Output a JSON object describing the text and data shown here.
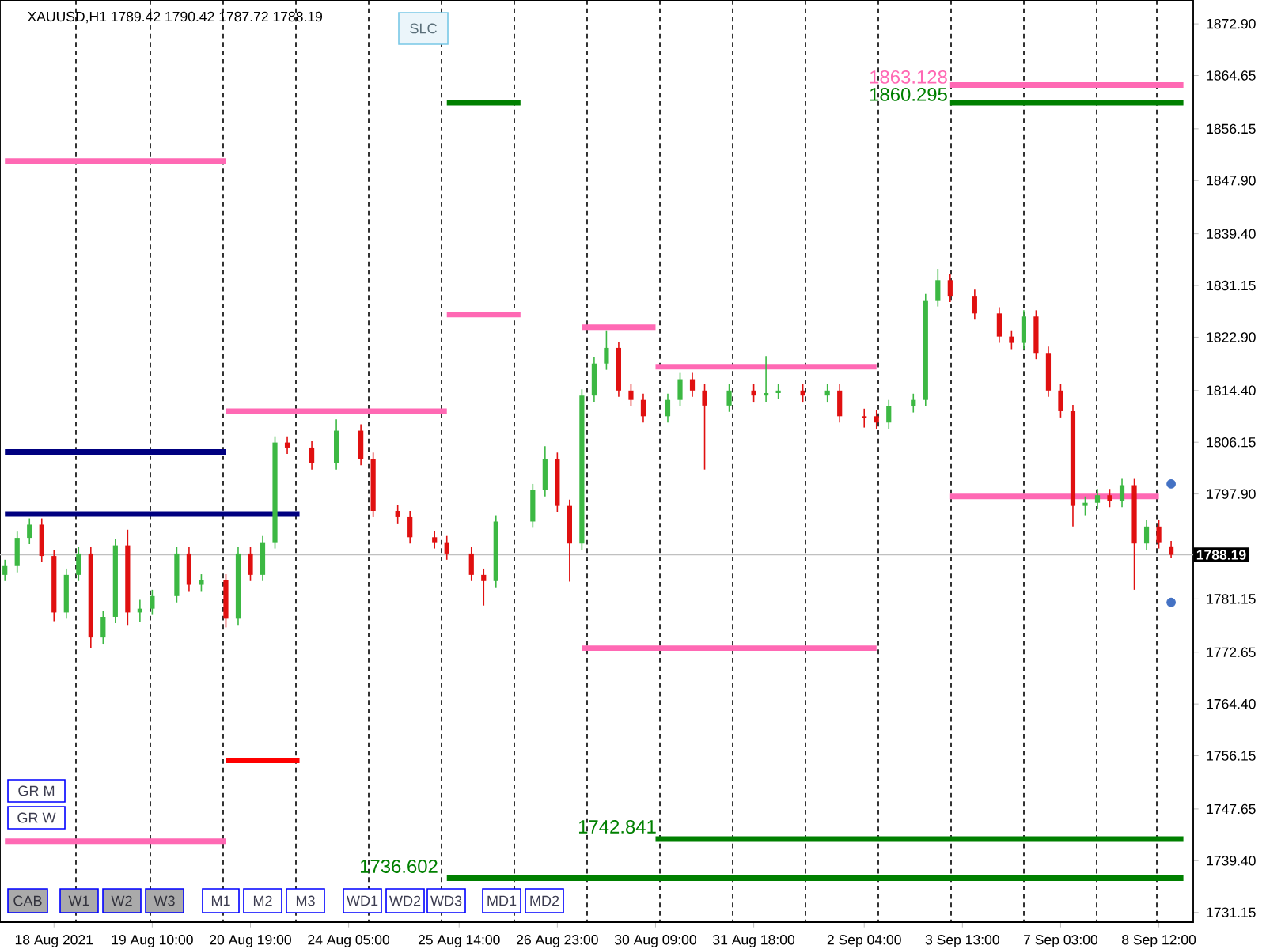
{
  "chart_data": {
    "type": "candlestick",
    "title": "XAUUSD,H1  1789.42 1790.42 1787.72 1788.19",
    "categories": [
      null,
      null,
      null,
      null,
      "18 Aug 2021",
      null,
      null,
      null,
      null,
      null,
      null,
      null,
      "19 Aug 10:00",
      null,
      null,
      null,
      null,
      null,
      null,
      null,
      "20 Aug 19:00",
      null,
      null,
      null,
      null,
      null,
      null,
      null,
      "24 Aug 05:00",
      null,
      null,
      null,
      null,
      null,
      null,
      null,
      null,
      "25 Aug 14:00",
      null,
      null,
      null,
      null,
      null,
      null,
      null,
      "26 Aug 23:00",
      null,
      null,
      null,
      null,
      null,
      null,
      null,
      "30 Aug 09:00",
      null,
      null,
      null,
      null,
      null,
      null,
      null,
      "31 Aug 18:00",
      null,
      null,
      null,
      null,
      null,
      null,
      null,
      null,
      "2 Sep 04:00",
      null,
      null,
      null,
      null,
      null,
      null,
      null,
      "3 Sep 13:00",
      null,
      null,
      null,
      null,
      null,
      null,
      null,
      "7 Sep 03:00",
      null,
      null,
      null,
      null,
      null,
      null,
      null,
      "8 Sep 12:00",
      null,
      null
    ],
    "ohlc": [
      [
        1785.0,
        1787.4,
        1784.0,
        1786.4
      ],
      [
        1786.4,
        1791.9,
        1785.4,
        1790.9
      ],
      [
        1790.9,
        1794.0,
        1789.9,
        1793.0
      ],
      [
        1793.0,
        1794.0,
        1787.0,
        1788.0
      ],
      [
        1788.0,
        1789.0,
        1777.6,
        1779.0
      ],
      [
        1779.0,
        1786.0,
        1778.0,
        1785.0
      ],
      [
        1785.0,
        1789.4,
        1784.0,
        1788.4
      ],
      [
        1788.4,
        1789.4,
        1773.3,
        1775.0
      ],
      [
        1775.0,
        1779.3,
        1774.0,
        1778.3
      ],
      [
        1778.3,
        1790.7,
        1777.3,
        1789.7
      ],
      [
        1789.7,
        1792.2,
        1777.0,
        1779.0
      ],
      [
        1779.0,
        1781.0,
        1777.5,
        1779.6
      ],
      [
        1779.6,
        1782.6,
        1778.6,
        1781.6
      ],
      null,
      [
        1781.6,
        1789.4,
        1780.6,
        1788.4
      ],
      [
        1788.4,
        1789.4,
        1782.4,
        1783.4
      ],
      [
        1783.4,
        1785.1,
        1782.4,
        1784.1
      ],
      null,
      [
        1784.1,
        1785.1,
        1776.6,
        1778.0
      ],
      [
        1778.0,
        1789.4,
        1777.0,
        1788.4
      ],
      [
        1788.4,
        1789.4,
        1784.0,
        1785.0
      ],
      [
        1785.0,
        1791.2,
        1784.0,
        1790.2
      ],
      [
        1790.2,
        1807.1,
        1789.2,
        1806.1
      ],
      [
        1806.1,
        1807.1,
        1804.3,
        1805.3
      ],
      null,
      [
        1805.3,
        1806.3,
        1801.8,
        1802.8
      ],
      null,
      [
        1802.8,
        1809.8,
        1801.8,
        1808.0
      ],
      null,
      [
        1808.0,
        1809.0,
        1802.5,
        1803.5
      ],
      [
        1803.5,
        1804.5,
        1794.2,
        1795.2
      ],
      null,
      [
        1795.2,
        1796.2,
        1793.2,
        1794.2
      ],
      [
        1794.2,
        1795.2,
        1790.0,
        1791.0
      ],
      null,
      [
        1791.0,
        1792.0,
        1789.2,
        1790.2
      ],
      [
        1790.2,
        1791.2,
        1787.4,
        1788.4
      ],
      null,
      [
        1788.4,
        1789.4,
        1784.0,
        1785.0
      ],
      [
        1785.0,
        1786.0,
        1780.1,
        1784.0
      ],
      [
        1784.0,
        1794.5,
        1783.0,
        1793.5
      ],
      null,
      null,
      [
        1793.5,
        1799.5,
        1792.5,
        1798.5
      ],
      [
        1798.5,
        1805.5,
        1797.5,
        1803.5
      ],
      [
        1803.5,
        1804.5,
        1795.0,
        1796.0
      ],
      [
        1796.0,
        1797.0,
        1783.9,
        1790.0
      ],
      [
        1790.0,
        1814.6,
        1789.0,
        1813.6
      ],
      [
        1813.6,
        1819.7,
        1812.6,
        1818.7
      ],
      [
        1818.7,
        1824.0,
        1817.7,
        1821.2
      ],
      [
        1821.2,
        1822.2,
        1813.4,
        1814.4
      ],
      [
        1814.4,
        1815.4,
        1811.9,
        1812.9
      ],
      [
        1812.9,
        1813.9,
        1809.3,
        1810.3
      ],
      null,
      [
        1810.3,
        1813.9,
        1809.3,
        1812.9
      ],
      [
        1812.9,
        1817.2,
        1811.9,
        1816.2
      ],
      [
        1816.2,
        1817.2,
        1813.4,
        1814.4
      ],
      [
        1814.4,
        1815.4,
        1801.8,
        1812.0
      ],
      null,
      [
        1812.0,
        1815.4,
        1811.0,
        1814.4
      ],
      null,
      [
        1814.4,
        1815.4,
        1812.6,
        1813.6
      ],
      [
        1813.6,
        1819.9,
        1812.6,
        1814.0
      ],
      [
        1814.0,
        1815.4,
        1813.0,
        1814.4
      ],
      null,
      [
        1814.4,
        1815.4,
        1812.6,
        1813.6
      ],
      null,
      [
        1813.6,
        1815.4,
        1812.6,
        1814.4
      ],
      [
        1814.4,
        1815.4,
        1809.3,
        1810.3
      ],
      null,
      [
        1810.3,
        1811.5,
        1808.5,
        1810.0
      ],
      [
        1810.3,
        1811.3,
        1808.3,
        1809.3
      ],
      [
        1809.3,
        1812.9,
        1808.3,
        1811.9
      ],
      null,
      [
        1811.9,
        1813.9,
        1810.9,
        1812.9
      ],
      [
        1812.9,
        1829.8,
        1811.9,
        1828.8
      ],
      [
        1828.8,
        1833.8,
        1827.8,
        1832.0
      ],
      [
        1832.0,
        1833.0,
        1828.5,
        1829.5
      ],
      null,
      [
        1829.5,
        1830.5,
        1825.7,
        1826.7
      ],
      null,
      [
        1826.7,
        1827.7,
        1822.0,
        1823.0
      ],
      [
        1823.0,
        1824.0,
        1821.0,
        1822.0
      ],
      [
        1822.0,
        1827.2,
        1821.0,
        1826.2
      ],
      [
        1826.2,
        1827.2,
        1819.4,
        1820.4
      ],
      [
        1820.4,
        1821.4,
        1813.4,
        1814.4
      ],
      [
        1814.4,
        1815.4,
        1810.1,
        1811.1
      ],
      [
        1811.1,
        1812.1,
        1792.7,
        1796.0
      ],
      [
        1796.0,
        1797.5,
        1794.5,
        1796.5
      ],
      [
        1796.5,
        1798.7,
        1795.5,
        1797.7
      ],
      [
        1797.7,
        1798.7,
        1795.8,
        1796.8
      ],
      [
        1796.8,
        1800.3,
        1795.8,
        1799.3
      ],
      [
        1799.3,
        1800.3,
        1782.6,
        1790.0
      ],
      [
        1790.0,
        1793.7,
        1789.0,
        1792.7
      ],
      [
        1792.7,
        1793.7,
        1789.2,
        1790.2
      ],
      [
        1789.42,
        1790.42,
        1787.72,
        1788.19
      ],
      null
    ],
    "colors": [
      "#3cb843",
      "#3cb843",
      "#3cb843",
      "#e01010",
      "#e01010",
      "#3cb843",
      "#3cb843",
      "#e01010",
      "#3cb843",
      "#3cb843",
      "#e01010",
      "#3cb843",
      "#3cb843",
      null,
      "#3cb843",
      "#e01010",
      "#3cb843",
      null,
      "#e01010",
      "#3cb843",
      "#e01010",
      "#3cb843",
      "#3cb843",
      "#e01010",
      null,
      "#e01010",
      null,
      "#3cb843",
      null,
      "#e01010",
      "#e01010",
      null,
      "#e01010",
      "#e01010",
      null,
      "#e01010",
      "#e01010",
      null,
      "#e01010",
      "#e01010",
      "#3cb843",
      null,
      null,
      "#3cb843",
      "#3cb843",
      "#e01010",
      "#e01010",
      "#3cb843",
      "#3cb843",
      "#3cb843",
      "#e01010",
      "#e01010",
      "#e01010",
      null,
      "#3cb843",
      "#3cb843",
      "#e01010",
      "#e01010",
      null,
      "#3cb843",
      null,
      "#e01010",
      "#3cb843",
      "#3cb843",
      null,
      "#e01010",
      null,
      "#3cb843",
      "#e01010",
      null,
      "#e01010",
      "#e01010",
      "#3cb843",
      null,
      "#3cb843",
      "#3cb843",
      "#3cb843",
      "#e01010",
      null,
      "#e01010",
      null,
      "#e01010",
      "#e01010",
      "#3cb843",
      "#e01010",
      "#e01010",
      "#e01010",
      "#e01010",
      "#3cb843",
      "#3cb843",
      "#e01010",
      "#3cb843",
      "#e01010",
      "#3cb843",
      "#e01010",
      "#e01010",
      null
    ],
    "series": [
      {
        "type": "line",
        "color": "#ff69b4",
        "values": [
          1851.0,
          1851.0,
          1851.0,
          1851.0,
          1851.0,
          1851.0,
          1851.0,
          1851.0,
          1851.0,
          1851.0,
          1851.0,
          1851.0,
          1851.0,
          1851.0,
          1851.0,
          1851.0,
          1851.0,
          1851.0,
          1851.0,
          null,
          null,
          null,
          null,
          null,
          null,
          null,
          null,
          null,
          null,
          null,
          null,
          null,
          null,
          null,
          null,
          null,
          null,
          null,
          null,
          null,
          null,
          null,
          null,
          null,
          null,
          null,
          null,
          null,
          null,
          null,
          null,
          null,
          null,
          1818.2,
          1818.2,
          1818.2,
          1818.2,
          1818.2,
          1818.2,
          1818.2,
          1818.2,
          1818.2,
          1818.2,
          1818.2,
          1818.2,
          1818.2,
          1818.2,
          1818.2,
          1818.2,
          1818.2,
          1818.2,
          1818.2,
          null,
          null,
          null,
          null,
          null,
          null,
          null,
          null,
          null,
          null,
          null,
          null,
          null,
          null,
          null,
          null,
          null,
          null,
          null,
          null,
          null,
          null,
          null,
          null,
          null
        ]
      },
      {
        "type": "line",
        "color": "#000080",
        "values": [
          1804.6,
          1804.6,
          1804.6,
          1804.6,
          1804.6,
          1804.6,
          1804.6,
          1804.6,
          1804.6,
          1804.6,
          1804.6,
          1804.6,
          1804.6,
          1804.6,
          1804.6,
          1804.6,
          1804.6,
          1804.6,
          1804.6,
          null,
          null,
          null,
          null,
          null,
          null,
          null,
          null,
          null,
          null,
          null,
          null,
          null,
          null,
          null,
          null,
          null,
          null,
          null,
          null,
          null,
          null,
          null,
          null,
          null,
          null,
          null,
          null,
          null,
          null,
          null,
          null,
          null,
          null,
          null,
          null,
          null,
          null,
          null,
          null,
          null,
          null,
          null,
          null,
          null,
          null,
          null,
          null,
          null,
          null,
          null,
          null,
          null,
          null,
          null,
          null,
          null,
          null,
          null,
          null,
          null,
          null,
          null,
          null,
          null,
          null,
          null,
          null,
          null,
          null,
          null,
          null,
          null,
          null,
          null,
          null,
          null,
          null
        ]
      },
      {
        "type": "line",
        "color": "#000080",
        "values": [
          1794.7,
          1794.7,
          1794.7,
          1794.7,
          1794.7,
          1794.7,
          1794.7,
          1794.7,
          1794.7,
          1794.7,
          1794.7,
          1794.7,
          1794.7,
          1794.7,
          1794.7,
          1794.7,
          1794.7,
          1794.7,
          1794.7,
          1794.7,
          1794.7,
          1794.7,
          1794.7,
          1794.7,
          1794.7,
          null,
          null,
          null,
          null,
          null,
          null,
          null,
          null,
          null,
          null,
          null,
          null,
          null,
          null,
          null,
          null,
          null,
          null,
          null,
          null,
          null,
          null,
          null,
          null,
          null,
          null,
          null,
          null,
          null,
          null,
          null,
          null,
          null,
          null,
          null,
          null,
          null,
          null,
          null,
          null,
          null,
          null,
          null,
          null,
          null,
          null,
          null,
          null,
          null,
          null,
          null,
          null,
          null,
          null,
          null,
          null,
          null,
          null,
          null,
          null,
          null,
          null,
          null,
          null,
          null,
          null,
          null,
          null,
          null,
          null,
          null,
          null
        ]
      },
      {
        "type": "line",
        "color": "#ff0000",
        "values": [
          null,
          null,
          null,
          null,
          null,
          null,
          null,
          null,
          null,
          null,
          null,
          null,
          null,
          null,
          null,
          null,
          null,
          null,
          1755.4,
          1755.4,
          1755.4,
          1755.4,
          1755.4,
          1755.4,
          1755.4,
          null,
          null,
          null,
          null,
          null,
          null,
          null,
          null,
          null,
          null,
          null,
          null,
          null,
          null,
          null,
          null,
          null,
          null,
          null,
          null,
          null,
          null,
          null,
          null,
          null,
          null,
          null,
          null,
          null,
          null,
          null,
          null,
          null,
          null,
          null,
          null,
          null,
          null,
          null,
          null,
          null,
          null,
          null,
          null,
          null,
          null,
          null,
          null,
          null,
          null,
          null,
          null,
          null,
          null,
          null,
          null,
          null,
          null,
          null,
          null,
          null,
          null,
          null,
          null,
          null,
          null,
          null,
          null,
          null,
          null,
          null,
          null
        ]
      },
      {
        "type": "line",
        "color": "#008000",
        "values": [
          null,
          null,
          null,
          null,
          null,
          null,
          null,
          null,
          null,
          null,
          null,
          null,
          null,
          null,
          null,
          null,
          null,
          null,
          null,
          null,
          null,
          null,
          null,
          null,
          null,
          null,
          null,
          null,
          null,
          null,
          null,
          null,
          null,
          null,
          null,
          null,
          1860.295,
          1860.295,
          1860.295,
          1860.295,
          1860.295,
          1860.295,
          1860.295,
          null,
          null,
          null,
          null,
          null,
          null,
          null,
          null,
          null,
          null,
          null,
          null,
          null,
          null,
          null,
          null,
          null,
          null,
          null,
          null,
          null,
          null,
          null,
          null,
          null,
          null,
          null,
          null,
          null,
          null,
          null,
          null,
          null,
          null,
          1860.295,
          1860.295,
          1860.295,
          1860.295,
          1860.295,
          1860.295,
          1860.295,
          1860.295,
          1860.295,
          1860.295,
          1860.295,
          1860.295,
          1860.295,
          1860.295,
          1860.295,
          1860.295,
          1860.295,
          1860.295,
          1860.295,
          1860.295
        ]
      },
      {
        "type": "line",
        "color": "#ff69b4",
        "values": [
          1742.5,
          1742.5,
          1742.5,
          1742.5,
          1742.5,
          1742.5,
          1742.5,
          1742.5,
          1742.5,
          1742.5,
          1742.5,
          1742.5,
          1742.5,
          1742.5,
          1742.5,
          1742.5,
          1742.5,
          1742.5,
          1742.5,
          null,
          null,
          null,
          null,
          null,
          null,
          null,
          null,
          null,
          null,
          null,
          null,
          null,
          null,
          null,
          null,
          null,
          1826.5,
          1826.5,
          1826.5,
          1826.5,
          1826.5,
          1826.5,
          1826.5,
          null,
          null,
          null,
          null,
          1824.5,
          1824.5,
          1824.5,
          1824.5,
          1824.5,
          1824.5,
          1824.5,
          null,
          null,
          null,
          null,
          null,
          null,
          null,
          null,
          null,
          null,
          null,
          null,
          null,
          null,
          null,
          null,
          null,
          null,
          null,
          null,
          null,
          null,
          null,
          1863.128,
          1863.128,
          1863.128,
          1863.128,
          1863.128,
          1863.128,
          1863.128,
          1863.128,
          1863.128,
          1863.128,
          1863.128,
          1863.128,
          1863.128,
          1863.128,
          1863.128,
          1863.128,
          1863.128,
          1863.128,
          1863.128,
          1863.128
        ]
      },
      {
        "type": "line",
        "color": "#ff69b4",
        "values": [
          null,
          null,
          null,
          null,
          null,
          null,
          null,
          null,
          null,
          null,
          null,
          null,
          null,
          null,
          null,
          null,
          null,
          null,
          1811.1,
          1811.1,
          1811.1,
          1811.1,
          1811.1,
          1811.1,
          1811.1,
          1811.1,
          1811.1,
          1811.1,
          1811.1,
          1811.1,
          1811.1,
          1811.1,
          1811.1,
          1811.1,
          1811.1,
          1811.1,
          1811.1,
          null,
          null,
          null,
          null,
          null,
          null,
          null,
          null,
          null,
          null,
          1773.3,
          1773.3,
          1773.3,
          1773.3,
          1773.3,
          1773.3,
          1773.3,
          1773.3,
          1773.3,
          1773.3,
          1773.3,
          1773.3,
          1773.3,
          1773.3,
          1773.3,
          1773.3,
          1773.3,
          1773.3,
          1773.3,
          1773.3,
          1773.3,
          1773.3,
          1773.3,
          1773.3,
          1773.3,
          null,
          null,
          null,
          null,
          null,
          1797.5,
          1797.5,
          1797.5,
          1797.5,
          1797.5,
          1797.5,
          1797.5,
          1797.5,
          1797.5,
          1797.5,
          1797.5,
          1797.5,
          1797.5,
          1797.5,
          1797.5,
          1797.5,
          1797.5,
          1797.5,
          null,
          null
        ]
      },
      {
        "type": "line",
        "color": "#008000",
        "values": [
          null,
          null,
          null,
          null,
          null,
          null,
          null,
          null,
          null,
          null,
          null,
          null,
          null,
          null,
          null,
          null,
          null,
          null,
          null,
          null,
          null,
          null,
          null,
          null,
          null,
          null,
          null,
          null,
          null,
          null,
          null,
          null,
          null,
          null,
          null,
          null,
          1736.602,
          1736.602,
          1736.602,
          1736.602,
          1736.602,
          1736.602,
          1736.602,
          1736.602,
          1736.602,
          1736.602,
          1736.602,
          1736.602,
          1736.602,
          1736.602,
          1736.602,
          1736.602,
          1736.602,
          1736.602,
          1736.602,
          1736.602,
          1736.602,
          1736.602,
          1736.602,
          1736.602,
          1736.602,
          1736.602,
          1736.602,
          1736.602,
          1736.602,
          1736.602,
          1736.602,
          1736.602,
          1736.602,
          1736.602,
          1736.602,
          1736.602,
          1736.602,
          1736.602,
          1736.602,
          1736.602,
          1736.602,
          1736.602,
          1736.602,
          1736.602,
          1736.602,
          1736.602,
          1736.602,
          1736.602,
          1736.602,
          1736.602,
          1736.602,
          1736.602,
          1736.602,
          1736.602,
          1736.602,
          1736.602,
          1736.602,
          1736.602,
          1736.602,
          1736.602,
          1736.602
        ]
      },
      {
        "type": "line",
        "color": "#008000",
        "values": [
          null,
          null,
          null,
          null,
          null,
          null,
          null,
          null,
          null,
          null,
          null,
          null,
          null,
          null,
          null,
          null,
          null,
          null,
          null,
          null,
          null,
          null,
          null,
          null,
          null,
          null,
          null,
          null,
          null,
          null,
          null,
          null,
          null,
          null,
          null,
          null,
          null,
          null,
          null,
          null,
          null,
          null,
          null,
          null,
          null,
          null,
          null,
          null,
          null,
          null,
          null,
          null,
          null,
          1742.841,
          1742.841,
          1742.841,
          1742.841,
          1742.841,
          1742.841,
          1742.841,
          1742.841,
          1742.841,
          1742.841,
          1742.841,
          1742.841,
          1742.841,
          1742.841,
          1742.841,
          1742.841,
          1742.841,
          1742.841,
          1742.841,
          1742.841,
          1742.841,
          1742.841,
          1742.841,
          1742.841,
          1742.841,
          1742.841,
          1742.841,
          1742.841,
          1742.841,
          1742.841,
          1742.841,
          1742.841,
          1742.841,
          1742.841,
          1742.841,
          1742.841,
          1742.841,
          1742.841,
          1742.841,
          1742.841,
          1742.841,
          1742.841,
          1742.841,
          1742.841
        ]
      },
      {
        "type": "scatter",
        "color": "#4472c4",
        "values": [
          null,
          null,
          null,
          null,
          null,
          null,
          null,
          null,
          null,
          null,
          null,
          null,
          null,
          null,
          null,
          null,
          null,
          null,
          null,
          null,
          null,
          null,
          null,
          null,
          null,
          null,
          null,
          null,
          null,
          null,
          null,
          null,
          null,
          null,
          null,
          null,
          null,
          null,
          null,
          null,
          null,
          null,
          null,
          null,
          null,
          null,
          null,
          null,
          null,
          null,
          null,
          null,
          null,
          null,
          null,
          null,
          null,
          null,
          null,
          null,
          null,
          null,
          null,
          null,
          null,
          null,
          null,
          null,
          null,
          null,
          null,
          null,
          null,
          null,
          null,
          null,
          null,
          null,
          null,
          null,
          null,
          null,
          null,
          null,
          null,
          null,
          null,
          null,
          null,
          null,
          null,
          null,
          null,
          null,
          null,
          1799.5,
          null
        ]
      },
      {
        "type": "scatter",
        "color": "#4472c4",
        "values": [
          null,
          null,
          null,
          null,
          null,
          null,
          null,
          null,
          null,
          null,
          null,
          null,
          null,
          null,
          null,
          null,
          null,
          null,
          null,
          null,
          null,
          null,
          null,
          null,
          null,
          null,
          null,
          null,
          null,
          null,
          null,
          null,
          null,
          null,
          null,
          null,
          null,
          null,
          null,
          null,
          null,
          null,
          null,
          null,
          null,
          null,
          null,
          null,
          null,
          null,
          null,
          null,
          null,
          null,
          null,
          null,
          null,
          null,
          null,
          null,
          null,
          null,
          null,
          null,
          null,
          null,
          null,
          null,
          null,
          null,
          null,
          null,
          null,
          null,
          null,
          null,
          null,
          null,
          null,
          null,
          null,
          null,
          null,
          null,
          null,
          null,
          null,
          null,
          null,
          null,
          null,
          null,
          null,
          null,
          null,
          1780.6,
          null
        ]
      }
    ],
    "ylim": [
      1729.6,
      1876.7
    ],
    "yticks": [
      {
        "value": 1731.15,
        "label": "1731.15"
      },
      {
        "value": 1739.4,
        "label": "1739.40"
      },
      {
        "value": 1747.65,
        "label": "1747.65"
      },
      {
        "value": 1756.15,
        "label": "1756.15"
      },
      {
        "value": 1764.4,
        "label": "1764.40"
      },
      {
        "value": 1772.65,
        "label": "1772.65"
      },
      {
        "value": 1781.15,
        "label": "1781.15"
      },
      {
        "value": 1797.9,
        "label": "1797.90"
      },
      {
        "value": 1806.15,
        "label": "1806.15"
      },
      {
        "value": 1814.4,
        "label": "1814.40"
      },
      {
        "value": 1822.9,
        "label": "1822.90"
      },
      {
        "value": 1831.15,
        "label": "1831.15"
      },
      {
        "value": 1839.4,
        "label": "1839.40"
      },
      {
        "value": 1847.9,
        "label": "1847.90"
      },
      {
        "value": 1856.15,
        "label": "1856.15"
      },
      {
        "value": 1864.65,
        "label": "1864.65"
      },
      {
        "value": 1872.9,
        "label": "1872.90"
      }
    ],
    "ref_lines": [
      {
        "axis": "y",
        "value": 1788.19,
        "label": "1788.19",
        "color": "#c0c0c0"
      }
    ],
    "annotations": [
      "SLC",
      "GR M",
      "GR W",
      "CAB",
      "W1",
      "W2",
      "W3",
      "M1",
      "M2",
      "M3",
      "WD1",
      "WD2",
      "WD3",
      "MD1",
      "MD2",
      "1863.128",
      "1860.295",
      "1742.841",
      "1736.602"
    ],
    "grid": "x"
  }
}
